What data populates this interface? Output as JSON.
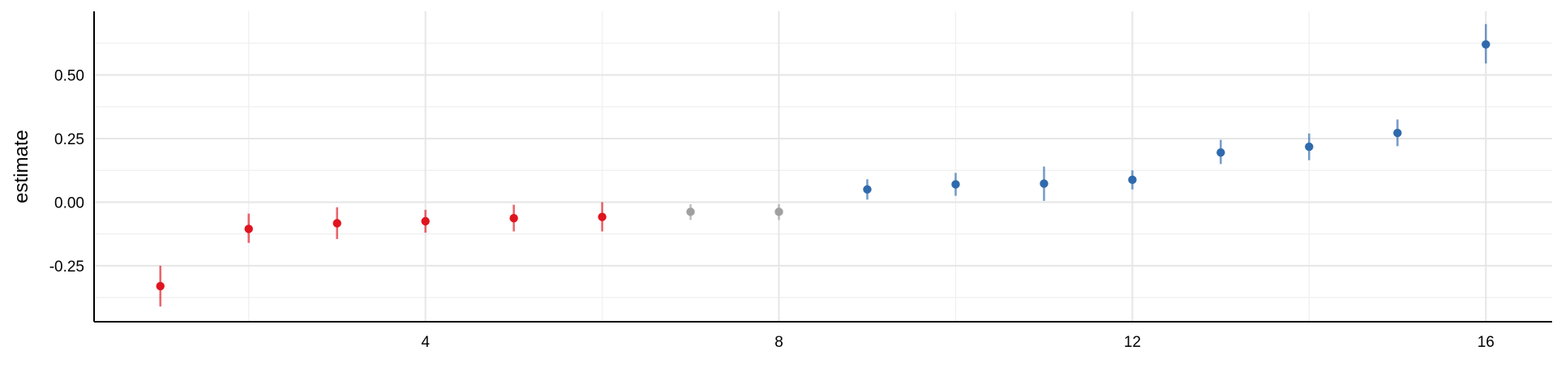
{
  "chart_data": {
    "type": "scatter",
    "title": "",
    "xlabel": "",
    "ylabel": "estimate",
    "xlim": [
      0.25,
      16.75
    ],
    "ylim": [
      -0.47,
      0.75
    ],
    "x_ticks": [
      4,
      8,
      12,
      16
    ],
    "x_tick_labels": [
      "4",
      "8",
      "12",
      "16"
    ],
    "y_ticks": [
      -0.25,
      0.0,
      0.25,
      0.5
    ],
    "y_tick_labels": [
      "-0.25",
      "0.00",
      "0.25",
      "0.50"
    ],
    "grid": true,
    "legend": "none",
    "colors": {
      "negative": "#e0141e",
      "neutral": "#a0a0a0",
      "positive": "#2f6aad"
    },
    "points": [
      {
        "x": 1,
        "y": -0.33,
        "low": -0.41,
        "high": -0.25,
        "group": "negative"
      },
      {
        "x": 2,
        "y": -0.105,
        "low": -0.16,
        "high": -0.045,
        "group": "negative"
      },
      {
        "x": 3,
        "y": -0.083,
        "low": -0.145,
        "high": -0.02,
        "group": "negative"
      },
      {
        "x": 4,
        "y": -0.075,
        "low": -0.12,
        "high": -0.03,
        "group": "negative"
      },
      {
        "x": 5,
        "y": -0.063,
        "low": -0.115,
        "high": -0.01,
        "group": "negative"
      },
      {
        "x": 6,
        "y": -0.058,
        "low": -0.115,
        "high": 0.0,
        "group": "negative"
      },
      {
        "x": 7,
        "y": -0.038,
        "low": -0.07,
        "high": -0.008,
        "group": "neutral"
      },
      {
        "x": 8,
        "y": -0.038,
        "low": -0.07,
        "high": -0.008,
        "group": "neutral"
      },
      {
        "x": 9,
        "y": 0.05,
        "low": 0.01,
        "high": 0.09,
        "group": "positive"
      },
      {
        "x": 10,
        "y": 0.07,
        "low": 0.025,
        "high": 0.115,
        "group": "positive"
      },
      {
        "x": 11,
        "y": 0.073,
        "low": 0.005,
        "high": 0.14,
        "group": "positive"
      },
      {
        "x": 12,
        "y": 0.088,
        "low": 0.05,
        "high": 0.125,
        "group": "positive"
      },
      {
        "x": 13,
        "y": 0.195,
        "low": 0.15,
        "high": 0.245,
        "group": "positive"
      },
      {
        "x": 14,
        "y": 0.218,
        "low": 0.165,
        "high": 0.27,
        "group": "positive"
      },
      {
        "x": 15,
        "y": 0.272,
        "low": 0.22,
        "high": 0.325,
        "group": "positive"
      },
      {
        "x": 16,
        "y": 0.62,
        "low": 0.545,
        "high": 0.7,
        "group": "positive"
      }
    ]
  }
}
